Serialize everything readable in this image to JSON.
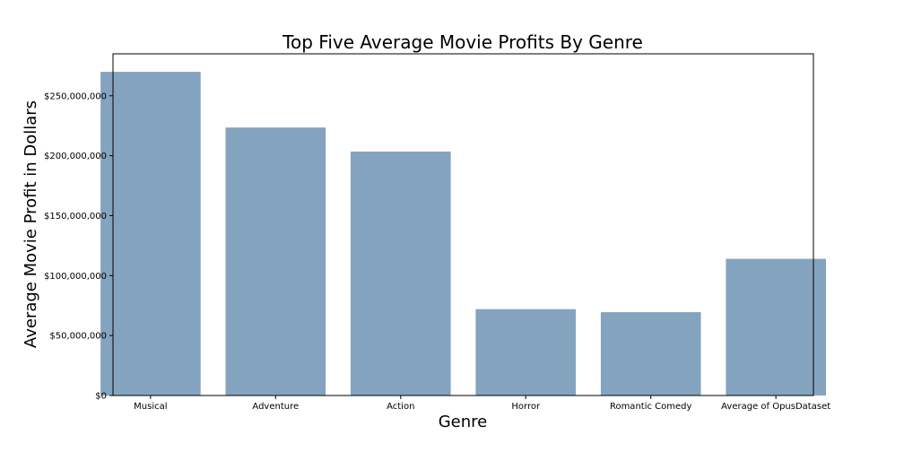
{
  "chart_data": {
    "type": "bar",
    "title": "Top Five Average Movie Profits By Genre",
    "xlabel": "Genre",
    "ylabel": "Average Movie Profit in Dollars",
    "categories": [
      "Musical",
      "Adventure",
      "Action",
      "Horror",
      "Romantic Comedy",
      "Average of OpusDataset"
    ],
    "values": [
      270000000,
      223500000,
      203500000,
      72000000,
      69500000,
      114000000
    ],
    "ylim": [
      0,
      285000000
    ],
    "yticks": [
      0,
      50000000,
      100000000,
      150000000,
      200000000,
      250000000
    ],
    "ytick_labels": [
      "$0",
      "$50,000,000",
      "$100,000,000",
      "$150,000,000",
      "$200,000,000",
      "$250,000,000"
    ],
    "bar_color": "#84a3bf",
    "grid": false,
    "legend": "none"
  }
}
